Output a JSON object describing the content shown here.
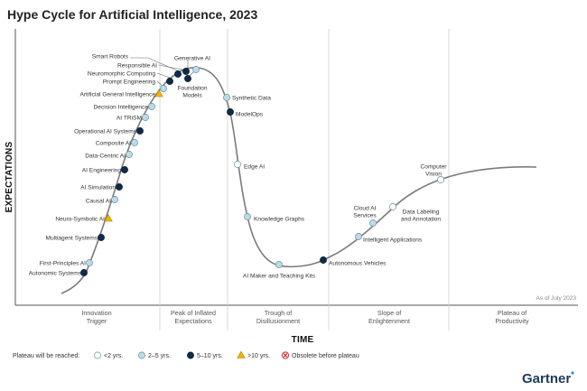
{
  "chart_data": {
    "type": "scatter",
    "title": "Hype Cycle for Artificial Intelligence, 2023",
    "xlabel": "TIME",
    "ylabel": "EXPECTATIONS",
    "note": "As of July 2023",
    "brand": "Gartner",
    "phases": [
      "Innovation Trigger",
      "Peak of Inflated Expectations",
      "Trough of Disillusionment",
      "Slope of Enlightenment",
      "Plateau of Productivity"
    ],
    "legend": {
      "title": "Plateau will be reached:",
      "items": [
        {
          "key": "lt2",
          "label": "<2 yrs."
        },
        {
          "key": "2to5",
          "label": "2–5 yrs."
        },
        {
          "key": "5to10",
          "label": "5–10 yrs."
        },
        {
          "key": "gt10",
          "label": ">10 yrs."
        },
        {
          "key": "obsolete",
          "label": "Obsolete before plateau"
        }
      ]
    },
    "colors": {
      "lt2": "#ffffff",
      "2to5": "#bcdbe8",
      "5to10": "#0f2b4a",
      "gt10": "#f4b400",
      "obsolete": "#d9262a",
      "curve": "#7b7b7b",
      "grid": "#cfcfcf"
    },
    "points": [
      {
        "name": "Autonomic Systems",
        "category": "5to10"
      },
      {
        "name": "First-Principles AI",
        "category": "2to5"
      },
      {
        "name": "Multiagent Systems",
        "category": "5to10"
      },
      {
        "name": "Neuro-Symbolic AI",
        "category": "gt10"
      },
      {
        "name": "Causal AI",
        "category": "2to5"
      },
      {
        "name": "AI Simulation",
        "category": "5to10"
      },
      {
        "name": "AI Engineering",
        "category": "5to10"
      },
      {
        "name": "Data-Centric AI",
        "category": "2to5"
      },
      {
        "name": "Composite AI",
        "category": "2to5"
      },
      {
        "name": "Operational AI Systems",
        "category": "5to10"
      },
      {
        "name": "AI TRiSM",
        "category": "2to5"
      },
      {
        "name": "Decision Intelligence",
        "category": "2to5"
      },
      {
        "name": "Artificial General Intelligence",
        "category": "gt10"
      },
      {
        "name": "Prompt Engineering",
        "category": "2to5"
      },
      {
        "name": "Neuromorphic Computing",
        "category": "5to10"
      },
      {
        "name": "Responsible AI",
        "category": "5to10"
      },
      {
        "name": "Smart Robots",
        "category": "5to10"
      },
      {
        "name": "Generative AI",
        "category": "2to5"
      },
      {
        "name": "Foundation Models",
        "category": "5to10"
      },
      {
        "name": "Synthetic Data",
        "category": "2to5"
      },
      {
        "name": "ModelOps",
        "category": "5to10"
      },
      {
        "name": "Edge AI",
        "category": "lt2"
      },
      {
        "name": "Knowledge Graphs",
        "category": "2to5"
      },
      {
        "name": "AI Maker and Teaching Kits",
        "category": "2to5"
      },
      {
        "name": "Autonomous Vehicles",
        "category": "5to10"
      },
      {
        "name": "Intelligent Applications",
        "category": "2to5"
      },
      {
        "name": "Cloud AI Services",
        "category": "2to5"
      },
      {
        "name": "Data Labeling and Annotation",
        "category": "lt2"
      },
      {
        "name": "Computer Vision",
        "category": "lt2"
      }
    ]
  }
}
